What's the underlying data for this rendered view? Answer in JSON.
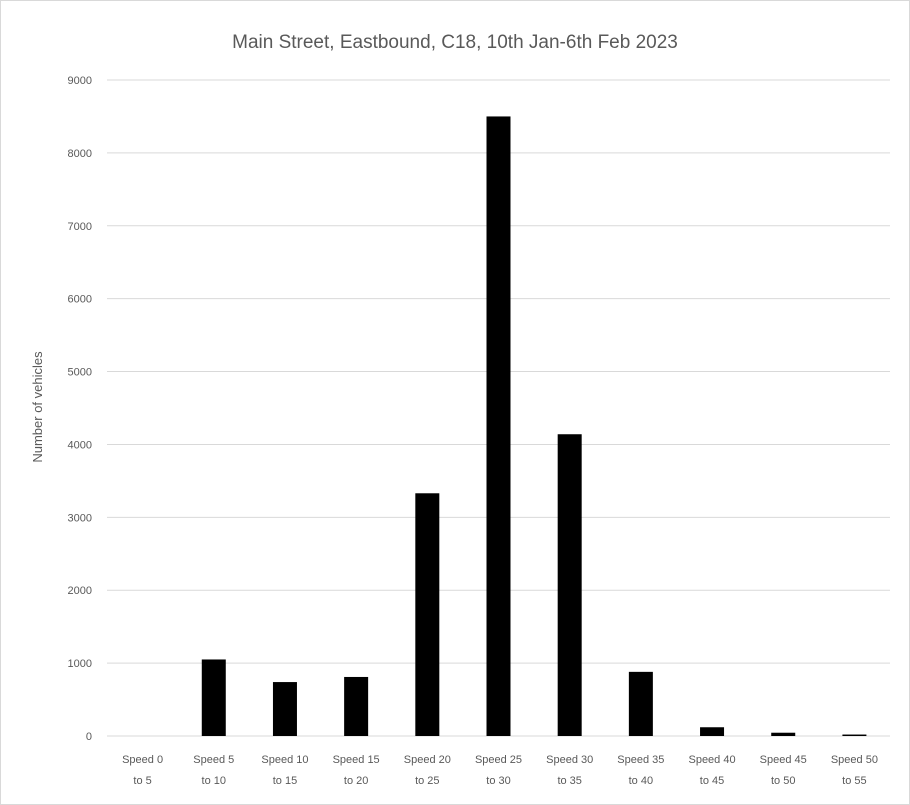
{
  "chart_data": {
    "type": "bar",
    "title": "Main Street, Eastbound, C18, 10th Jan-6th Feb 2023",
    "xlabel": "",
    "ylabel": "Number of vehicles",
    "ylim": [
      0,
      9000
    ],
    "yticks": [
      "0",
      "1000",
      "2000",
      "3000",
      "4000",
      "5000",
      "6000",
      "7000",
      "8000",
      "9000"
    ],
    "grid": true,
    "categories": [
      [
        "Speed 0",
        "to 5"
      ],
      [
        "Speed 5",
        "to 10"
      ],
      [
        "Speed 10",
        "to 15"
      ],
      [
        "Speed 15",
        "to 20"
      ],
      [
        "Speed 20",
        "to 25"
      ],
      [
        "Speed 25",
        "to 30"
      ],
      [
        "Speed 30",
        "to 35"
      ],
      [
        "Speed 35",
        "to 40"
      ],
      [
        "Speed 40",
        "to 45"
      ],
      [
        "Speed 45",
        "to 50"
      ],
      [
        "Speed 50",
        "to 55"
      ]
    ],
    "values": [
      0,
      1050,
      740,
      810,
      3330,
      8500,
      4140,
      880,
      120,
      45,
      20
    ],
    "bar_color": "#000000"
  }
}
